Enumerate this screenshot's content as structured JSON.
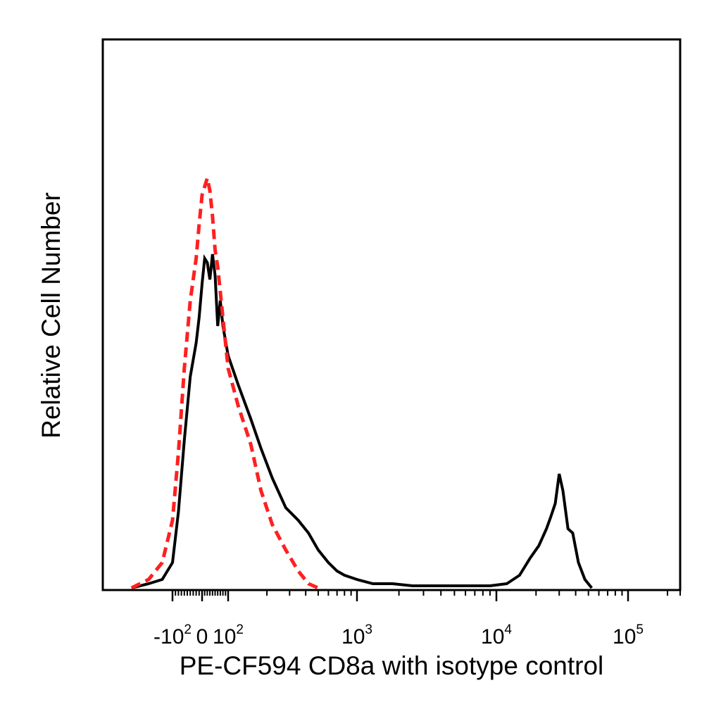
{
  "chart_data": {
    "type": "line",
    "title": "",
    "xlabel": "PE-CF594 CD8a with isotype control",
    "ylabel": "Relative Cell Number",
    "x_scale": "biexponential",
    "xlim": [
      -300,
      250000
    ],
    "ylim": [
      0,
      100
    ],
    "grid": false,
    "legend": "none",
    "x_tick_labels": [
      {
        "value": -100,
        "base": "-10",
        "exp": "2"
      },
      {
        "value": 0,
        "base": "0",
        "exp": ""
      },
      {
        "value": 100,
        "base": "10",
        "exp": "2"
      },
      {
        "value": 1000,
        "base": "10",
        "exp": "3"
      },
      {
        "value": 10000,
        "base": "10",
        "exp": "4"
      },
      {
        "value": 100000,
        "base": "10",
        "exp": "5"
      }
    ],
    "series": [
      {
        "color": "#000000",
        "style": "solid",
        "x": [
          -220,
          -170,
          -130,
          -100,
          -80,
          -60,
          -40,
          -20,
          -10,
          0,
          10,
          20,
          30,
          40,
          50,
          60,
          70,
          80,
          100,
          120,
          150,
          180,
          220,
          280,
          350,
          420,
          500,
          600,
          700,
          800,
          1000,
          1300,
          1800,
          2500,
          3500,
          5000,
          7000,
          9000,
          12000,
          15000,
          18000,
          21000,
          24000,
          26000,
          28000,
          30000,
          32000,
          35000,
          38000,
          42000,
          47000,
          53000
        ],
        "y": [
          0,
          1,
          2,
          6,
          18,
          35,
          50,
          58,
          64,
          72,
          78,
          77,
          73,
          79,
          74,
          62,
          68,
          62,
          55,
          48,
          40,
          33,
          26,
          19,
          16,
          13,
          9,
          6,
          4,
          3,
          2,
          1,
          1,
          0.5,
          0.5,
          0.5,
          0.5,
          0.5,
          1,
          3,
          7,
          10,
          14,
          17,
          20,
          27,
          23,
          14,
          13,
          6,
          2,
          0
        ]
      },
      {
        "color": "#ff2020",
        "style": "dashed",
        "x": [
          -220,
          -170,
          -130,
          -100,
          -80,
          -60,
          -40,
          -20,
          -10,
          0,
          10,
          20,
          30,
          40,
          50,
          60,
          70,
          80,
          100,
          120,
          150,
          180,
          220,
          280,
          350,
          420,
          500
        ],
        "y": [
          0,
          2,
          6,
          16,
          32,
          52,
          68,
          78,
          86,
          93,
          95,
          97,
          94,
          88,
          80,
          76,
          70,
          64,
          52,
          43,
          34,
          23,
          15,
          9,
          4,
          1,
          0
        ]
      }
    ]
  }
}
